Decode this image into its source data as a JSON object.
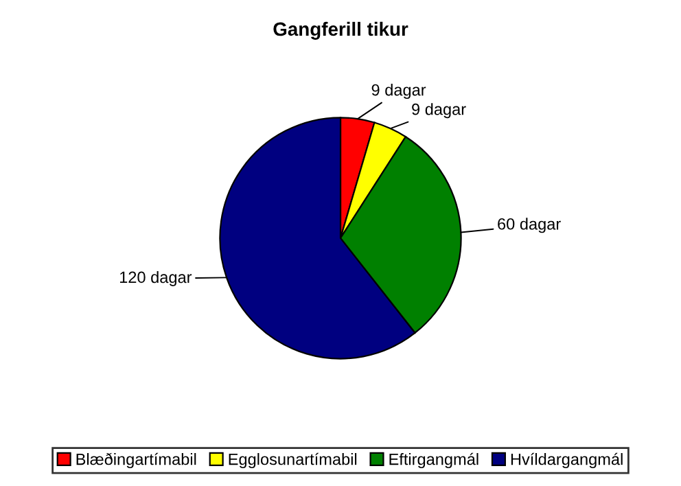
{
  "chart_data": {
    "type": "pie",
    "title": "Gangferill tikur",
    "categories": [
      "Blæðingartímabil",
      "Egglosunartímabil",
      "Eftirgangmál",
      "Hvíldargangmál"
    ],
    "values": [
      9,
      9,
      60,
      120
    ],
    "value_labels": [
      "9 dagar",
      "9 dagar",
      "60 dagar",
      "120 dagar"
    ],
    "colors": [
      "#ff0000",
      "#ffff00",
      "#008000",
      "#000080"
    ],
    "legend": "bottom"
  }
}
